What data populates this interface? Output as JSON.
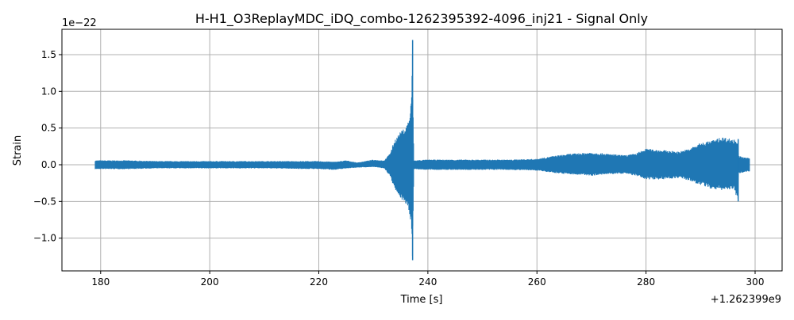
{
  "chart_data": {
    "type": "line",
    "title": "H-H1_O3ReplayMDC_iDQ_combo-1262395392-4096_inj21 - Signal Only",
    "xlabel": "Time [s]",
    "ylabel": "Strain",
    "x_offset_label": "+1.262399e9",
    "y_scale_label": "1e−22",
    "xlim": [
      172.9,
      304.95
    ],
    "ylim": [
      -1.446,
      1.845
    ],
    "xticks": [
      180,
      200,
      220,
      240,
      260,
      280,
      300
    ],
    "xtick_labels": [
      "180",
      "200",
      "220",
      "240",
      "260",
      "280",
      "300"
    ],
    "yticks": [
      -1.0,
      -0.5,
      0.0,
      0.5,
      1.0,
      1.5
    ],
    "ytick_labels": [
      "−1.0",
      "−0.5",
      "0.0",
      "0.5",
      "1.0",
      "1.5"
    ],
    "grid": true,
    "color": "#1f77b4",
    "envelope_note_units": "strain in units of 1e-22, time in s relative to offset",
    "envelope": {
      "x": [
        179,
        185,
        190,
        200,
        210,
        220,
        223,
        225,
        227,
        230,
        232,
        233,
        234,
        235,
        236,
        236.6,
        237.0,
        237.15,
        237.25,
        237.45,
        240,
        250,
        255,
        260,
        263,
        266,
        270,
        273,
        276,
        278,
        280,
        283,
        286,
        288,
        290,
        292,
        294,
        296,
        296.85,
        296.95,
        297.1,
        298,
        299
      ],
      "upper": [
        0.06,
        0.06,
        0.05,
        0.05,
        0.05,
        0.05,
        0.04,
        0.06,
        0.03,
        0.07,
        0.06,
        0.15,
        0.35,
        0.45,
        0.52,
        0.65,
        0.9,
        1.7,
        0.9,
        0.06,
        0.07,
        0.07,
        0.07,
        0.08,
        0.12,
        0.15,
        0.17,
        0.15,
        0.13,
        0.15,
        0.22,
        0.2,
        0.18,
        0.22,
        0.3,
        0.33,
        0.38,
        0.35,
        0.33,
        0.12,
        0.12,
        0.1,
        0.09
      ],
      "lower": [
        -0.06,
        -0.06,
        -0.05,
        -0.05,
        -0.05,
        -0.06,
        -0.07,
        -0.05,
        -0.04,
        -0.03,
        -0.05,
        -0.15,
        -0.35,
        -0.45,
        -0.55,
        -0.65,
        -0.85,
        -1.3,
        -0.9,
        -0.06,
        -0.07,
        -0.07,
        -0.07,
        -0.08,
        -0.11,
        -0.13,
        -0.15,
        -0.13,
        -0.12,
        -0.15,
        -0.2,
        -0.2,
        -0.18,
        -0.22,
        -0.28,
        -0.33,
        -0.35,
        -0.33,
        -0.5,
        -0.12,
        -0.12,
        -0.1,
        -0.09
      ]
    }
  }
}
